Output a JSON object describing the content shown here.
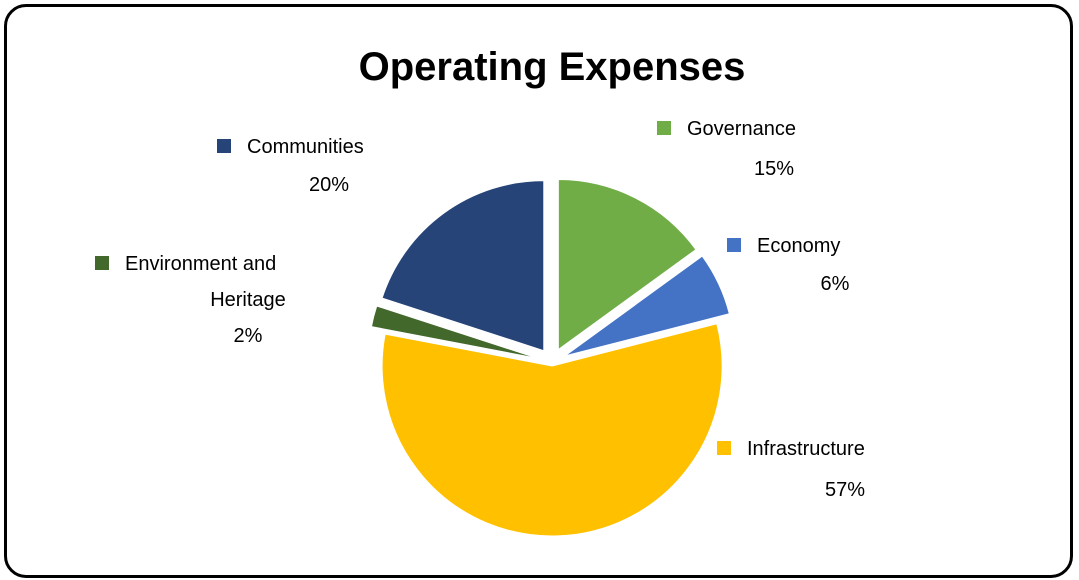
{
  "chart_data": {
    "type": "pie",
    "title": "Operating Expenses",
    "slices": [
      {
        "label": "Governance",
        "value": 15,
        "display": "15%",
        "color": "#70AD47"
      },
      {
        "label": "Economy",
        "value": 6,
        "display": "6%",
        "color": "#4472C4"
      },
      {
        "label": "Infrastructure",
        "value": 57,
        "display": "57%",
        "color": "#FFC000"
      },
      {
        "label": "Environment and Heritage",
        "value": 2,
        "display": "2%",
        "color": "#43682B"
      },
      {
        "label": "Communities",
        "value": 20,
        "display": "20%",
        "color": "#264478"
      }
    ]
  }
}
